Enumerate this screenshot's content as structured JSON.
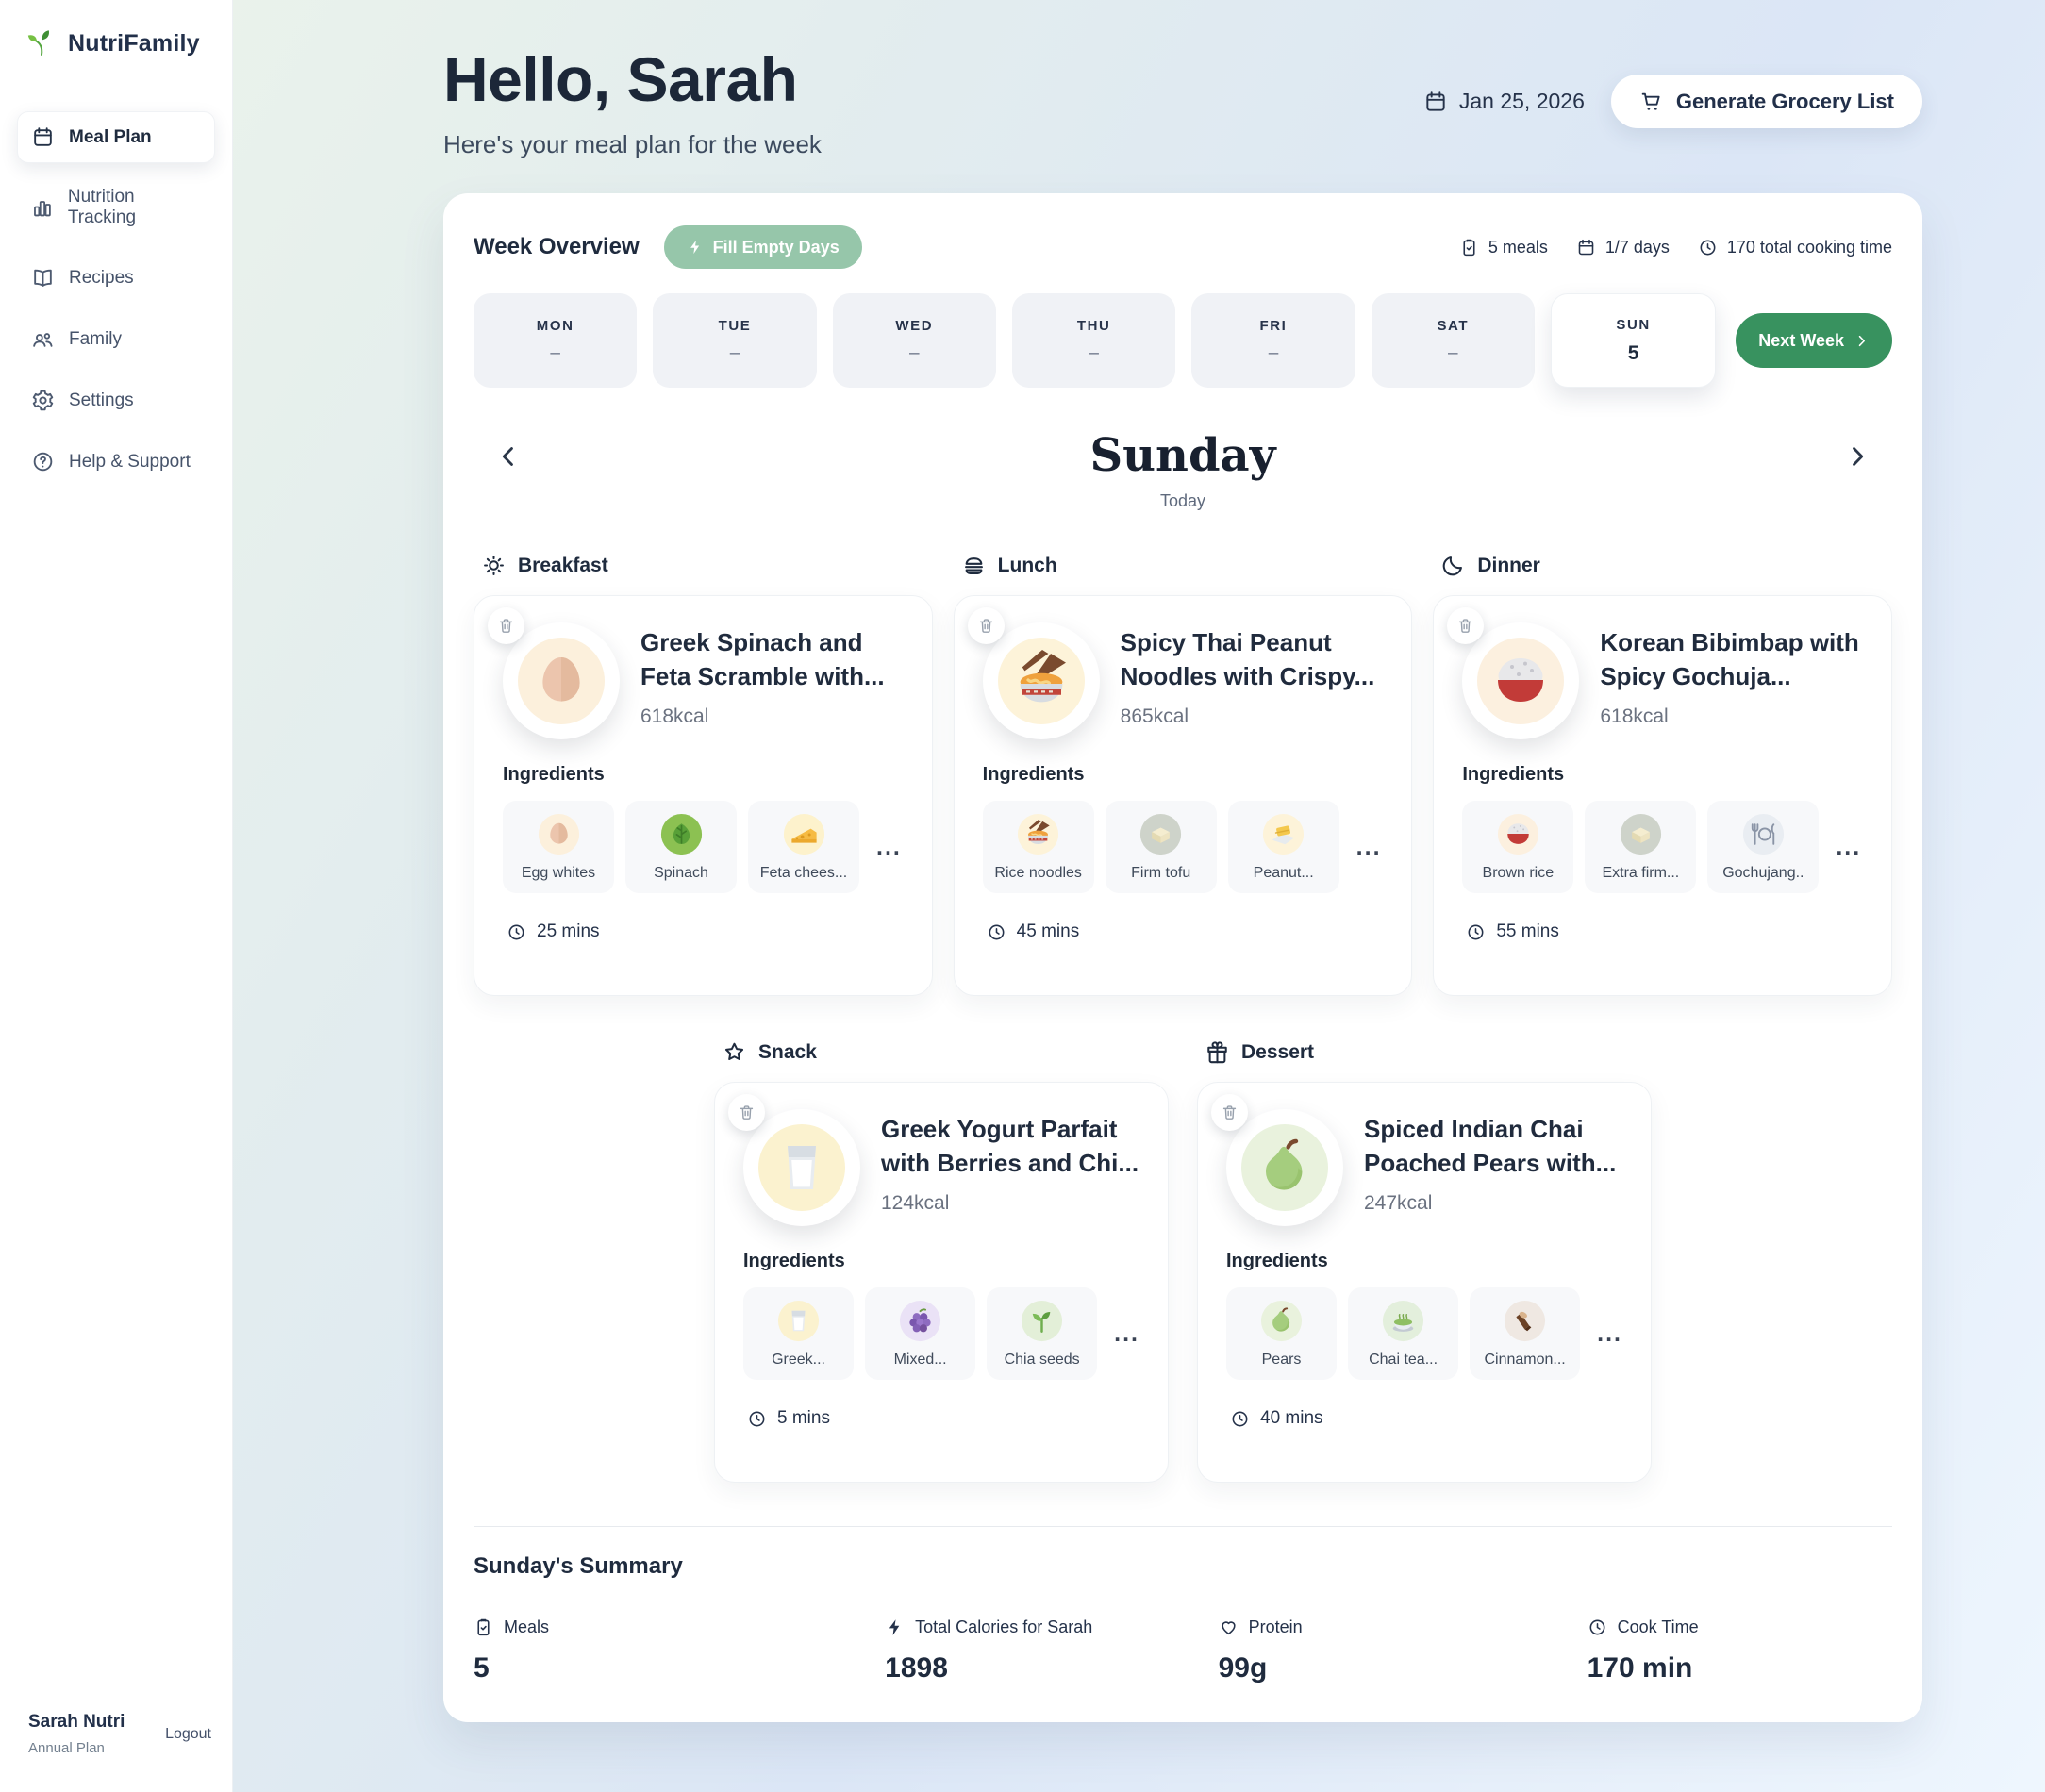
{
  "app": {
    "name": "NutriFamily",
    "logo_icon": "seedling-icon"
  },
  "sidebar": {
    "items": [
      {
        "label": "Meal Plan",
        "icon": "calendar-icon"
      },
      {
        "label": "Nutrition Tracking",
        "icon": "chart-icon"
      },
      {
        "label": "Recipes",
        "icon": "book-icon"
      },
      {
        "label": "Family",
        "icon": "users-icon"
      },
      {
        "label": "Settings",
        "icon": "gear-icon"
      },
      {
        "label": "Help & Support",
        "icon": "help-icon"
      }
    ],
    "user": {
      "name": "Sarah Nutri",
      "plan": "Annual Plan",
      "logout_label": "Logout"
    }
  },
  "header": {
    "title": "Hello, Sarah",
    "subtitle": "Here's your meal plan for the week",
    "date": "Jan 25, 2026",
    "date_icon": "calendar-icon",
    "grocery_button": {
      "label": "Generate Grocery List",
      "icon": "cart-icon"
    }
  },
  "week": {
    "title": "Week Overview",
    "fill_button": {
      "label": "Fill Empty Days",
      "icon": "zap-icon"
    },
    "stats": [
      {
        "icon": "clipboard-icon",
        "label": "5 meals"
      },
      {
        "icon": "calendar-icon",
        "label": "1/7 days"
      },
      {
        "icon": "clock-icon",
        "label": "170 total cooking time"
      }
    ],
    "days": [
      {
        "name": "MON",
        "value": "–"
      },
      {
        "name": "TUE",
        "value": "–"
      },
      {
        "name": "WED",
        "value": "–"
      },
      {
        "name": "THU",
        "value": "–"
      },
      {
        "name": "FRI",
        "value": "–"
      },
      {
        "name": "SAT",
        "value": "–"
      },
      {
        "name": "SUN",
        "value": "5",
        "selected": true
      }
    ],
    "next_button": {
      "label": "Next Week",
      "icon": "chevron-right-icon"
    }
  },
  "day_view": {
    "title": "Sunday",
    "subtitle": "Today",
    "prev_icon": "chevron-left-icon",
    "next_icon": "chevron-right-icon"
  },
  "common": {
    "delete_icon": "trash-icon",
    "time_icon": "clock-icon"
  },
  "meals": [
    {
      "type": "Breakfast",
      "type_icon": "sun-icon",
      "image": "egg-food-icon",
      "title": "Greek Spinach and Feta Scramble with...",
      "calories": "618kcal",
      "ingredients_label": "Ingredients",
      "ingredients": [
        {
          "name": "Egg whites",
          "icon": "egg-food-icon"
        },
        {
          "name": "Spinach",
          "icon": "spinach-food-icon"
        },
        {
          "name": "Feta chees...",
          "icon": "cheese-food-icon"
        }
      ],
      "more": "...",
      "time": "25 mins"
    },
    {
      "type": "Lunch",
      "type_icon": "burger-icon",
      "image": "noodles-food-icon",
      "title": "Spicy Thai Peanut Noodles with Crispy...",
      "calories": "865kcal",
      "ingredients_label": "Ingredients",
      "ingredients": [
        {
          "name": "Rice noodles",
          "icon": "noodles-food-icon"
        },
        {
          "name": "Firm tofu",
          "icon": "tofu-food-icon"
        },
        {
          "name": "Peanut...",
          "icon": "butter-food-icon"
        }
      ],
      "more": "...",
      "time": "45 mins"
    },
    {
      "type": "Dinner",
      "type_icon": "moon-icon",
      "image": "rice-food-icon",
      "title": "Korean Bibimbap with Spicy Gochuja...",
      "calories": "618kcal",
      "ingredients_label": "Ingredients",
      "ingredients": [
        {
          "name": "Brown rice",
          "icon": "rice-food-icon"
        },
        {
          "name": "Extra firm...",
          "icon": "tofu-food-icon"
        },
        {
          "name": "Gochujang..",
          "icon": "plate-food-icon"
        }
      ],
      "more": "...",
      "time": "55 mins"
    },
    {
      "type": "Snack",
      "type_icon": "star-icon",
      "image": "milk-food-icon",
      "title": "Greek Yogurt Parfait with Berries and Chi...",
      "calories": "124kcal",
      "ingredients_label": "Ingredients",
      "ingredients": [
        {
          "name": "Greek...",
          "icon": "milk-food-icon"
        },
        {
          "name": "Mixed...",
          "icon": "grapes-food-icon"
        },
        {
          "name": "Chia seeds",
          "icon": "sprout-food-icon"
        }
      ],
      "more": "...",
      "time": "5 mins"
    },
    {
      "type": "Dessert",
      "type_icon": "gift-icon",
      "image": "pear-food-icon",
      "title": "Spiced Indian Chai Poached Pears with...",
      "calories": "247kcal",
      "ingredients_label": "Ingredients",
      "ingredients": [
        {
          "name": "Pears",
          "icon": "pear-food-icon"
        },
        {
          "name": "Chai tea...",
          "icon": "tea-food-icon"
        },
        {
          "name": "Cinnamon...",
          "icon": "cinnamon-food-icon"
        }
      ],
      "more": "...",
      "time": "40 mins"
    }
  ],
  "summary": {
    "title": "Sunday's Summary",
    "stats": [
      {
        "icon": "clipboard-icon",
        "label": "Meals",
        "value": "5"
      },
      {
        "icon": "zap-icon",
        "label": "Total Calories for Sarah",
        "value": "1898"
      },
      {
        "icon": "heart-icon",
        "label": "Protein",
        "value": "99g"
      },
      {
        "icon": "clock-icon",
        "label": "Cook Time",
        "value": "170 min"
      }
    ]
  },
  "colors": {
    "accent_green": "#38925f",
    "sage_green": "#96c6aa",
    "navy_text": "#1f2b3e",
    "gradient_start": "#ecf4ea",
    "gradient_end": "#eef6fe"
  }
}
